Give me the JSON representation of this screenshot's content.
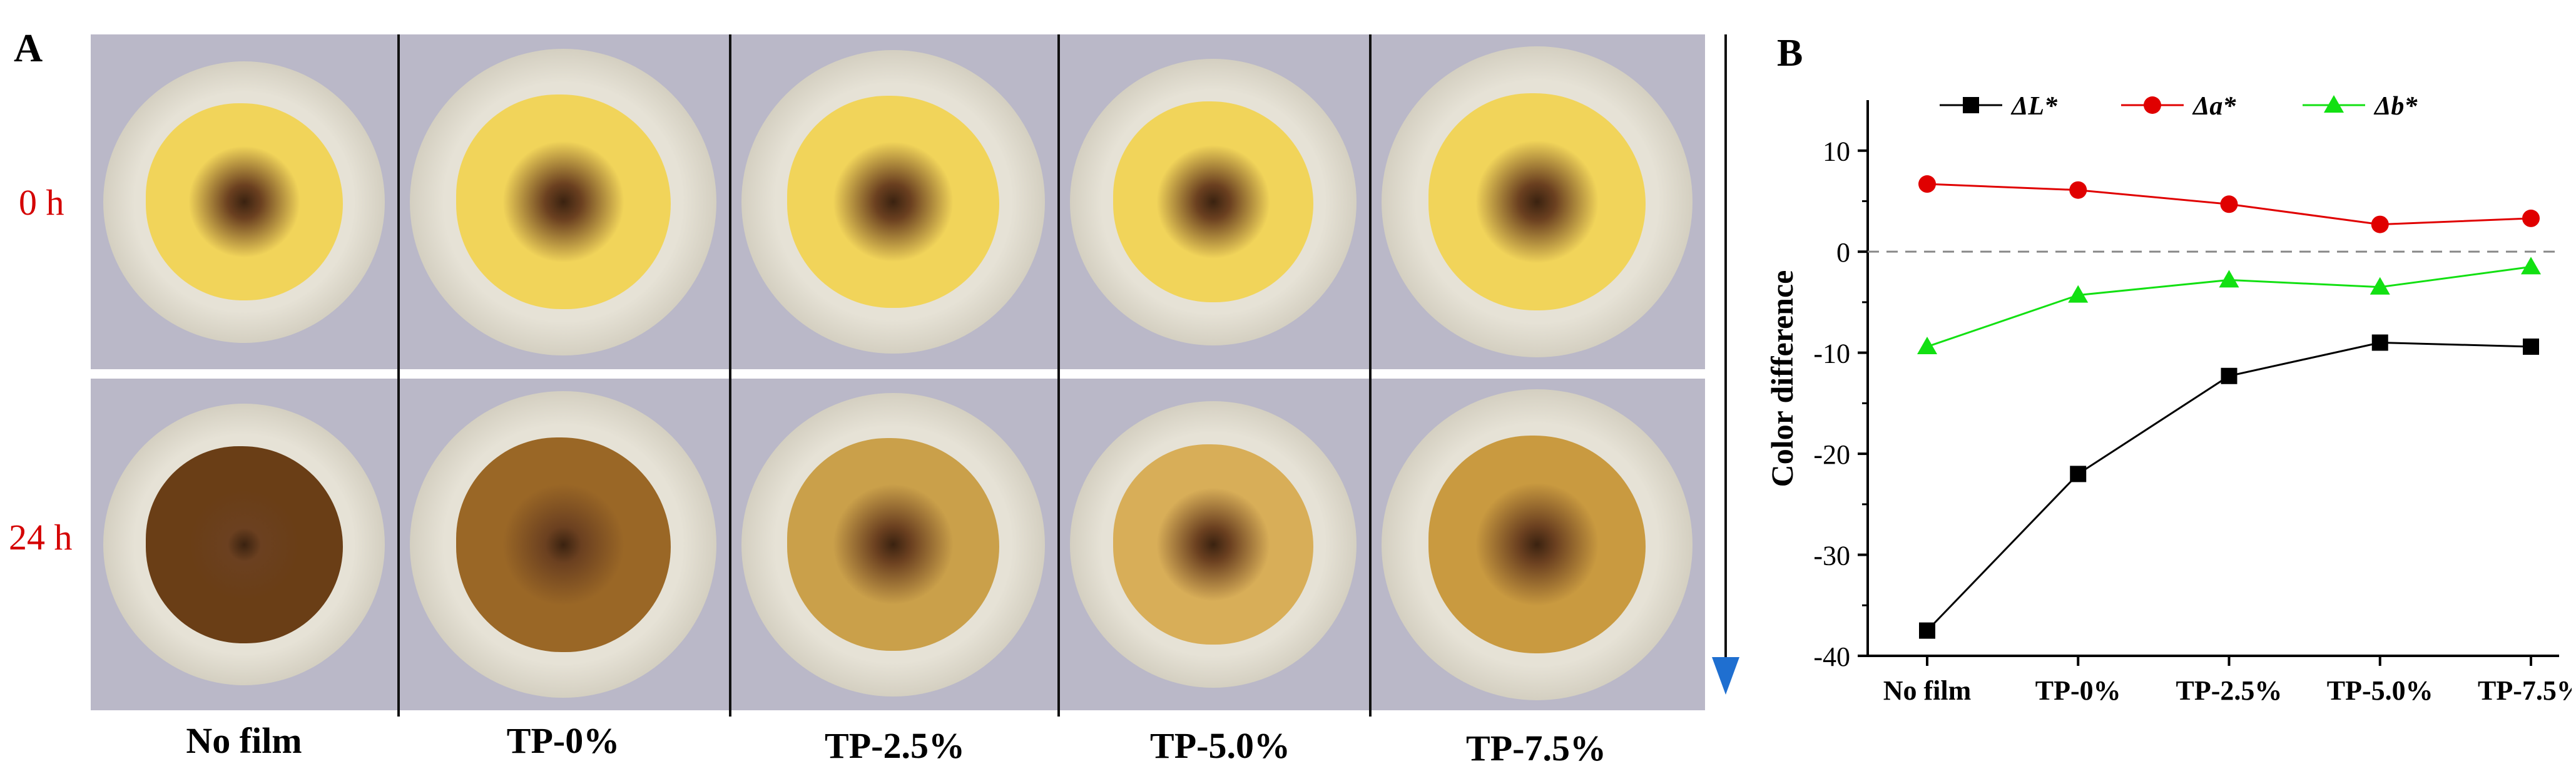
{
  "panel_a": {
    "letter": "A",
    "rows": [
      "0 h",
      "24 h"
    ],
    "samples": [
      "No film",
      "TP-0%",
      "TP-2.5%",
      "TP-5.0%",
      "TP-7.5%"
    ]
  },
  "colors": {
    "L": "#000000",
    "a": "#e00000",
    "b": "#12e012",
    "zero_line": "#888888",
    "time_label": "#d40000",
    "arrow": "#1f6fd0"
  },
  "chart_data": {
    "panel_letter": "B",
    "type": "line",
    "categories": [
      "No film",
      "TP-0%",
      "TP-2.5%",
      "TP-5.0%",
      "TP-7.5%"
    ],
    "ylabel": "Color difference",
    "xlabel": "",
    "ylim": [
      -40,
      15
    ],
    "yticks": [
      10,
      0,
      -10,
      -20,
      -30,
      -40
    ],
    "legend_position": "top",
    "zero_reference_line": true,
    "series": [
      {
        "name": "ΔL*",
        "marker": "square",
        "values": [
          -37.5,
          -22.0,
          -12.3,
          -9.0,
          -9.4
        ]
      },
      {
        "name": "Δa*",
        "marker": "circle",
        "values": [
          6.7,
          6.1,
          4.7,
          2.7,
          3.3
        ]
      },
      {
        "name": "Δb*",
        "marker": "triangle",
        "values": [
          -9.4,
          -4.3,
          -2.8,
          -3.5,
          -1.5
        ]
      }
    ]
  }
}
